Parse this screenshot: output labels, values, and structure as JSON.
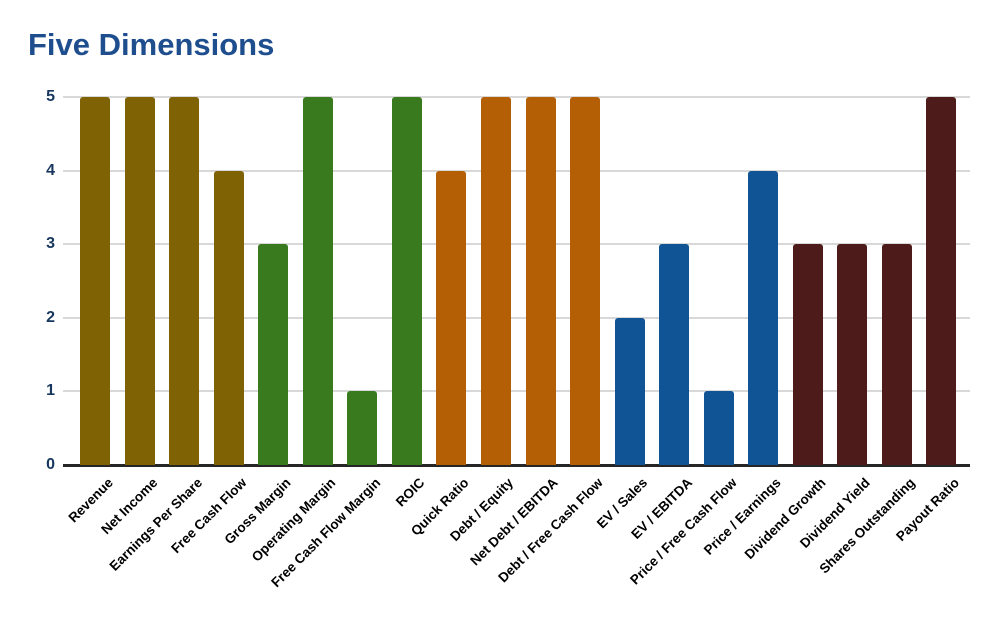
{
  "page": {
    "background": "#ffffff"
  },
  "chart_data": {
    "type": "bar",
    "title": "Five Dimensions",
    "xlabel": "",
    "ylabel": "",
    "ylim": [
      0,
      5
    ],
    "yticks": [
      0,
      1,
      2,
      3,
      4,
      5
    ],
    "grid": true,
    "legend": "none",
    "categories": [
      "Revenue",
      "Net Income",
      "Earnings Per Share",
      "Free Cash Flow",
      "Gross Margin",
      "Operating Margin",
      "Free Cash Flow Margin",
      "ROIC",
      "Quick Ratio",
      "Debt / Equity",
      "Net Debt / EBITDA",
      "Debt / Free Cash Flow",
      "EV / Sales",
      "EV / EBITDA",
      "Price / Free Cash Flow",
      "Price / Earnings",
      "Dividend Growth",
      "Dividend Yield",
      "Shares Outstanding",
      "Payout Ratio"
    ],
    "values": [
      5,
      5,
      5,
      4,
      3,
      5,
      1,
      5,
      4,
      5,
      5,
      5,
      2,
      3,
      1,
      4,
      3,
      3,
      3,
      5
    ],
    "bar_colors": [
      "#7E6204",
      "#7E6204",
      "#7E6204",
      "#7E6204",
      "#3A7A1F",
      "#3A7A1F",
      "#3A7A1F",
      "#3A7A1F",
      "#B45F06",
      "#B45F06",
      "#B45F06",
      "#B45F06",
      "#115496",
      "#115496",
      "#115496",
      "#115496",
      "#4E1B1B",
      "#4E1B1B",
      "#4E1B1B",
      "#4E1B1B"
    ],
    "colors": {
      "title": "#1F4E8F",
      "y_tick_labels": "#17375E",
      "x_tick_labels": "#000000",
      "gridline": "#D8D8D8",
      "baseline": "#262626",
      "background": "#ffffff"
    }
  }
}
